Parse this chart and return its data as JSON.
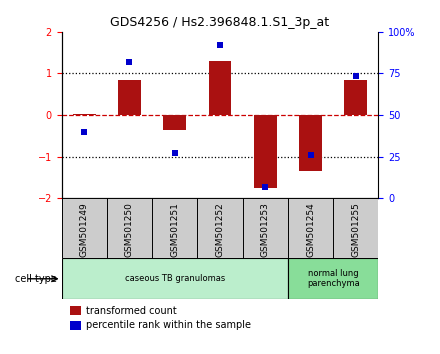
{
  "title": "GDS4256 / Hs2.396848.1.S1_3p_at",
  "samples": [
    "GSM501249",
    "GSM501250",
    "GSM501251",
    "GSM501252",
    "GSM501253",
    "GSM501254",
    "GSM501255"
  ],
  "red_bars": [
    0.02,
    0.85,
    -0.35,
    1.3,
    -1.75,
    -1.35,
    0.85
  ],
  "blue_dots": [
    -0.4,
    1.28,
    -0.92,
    1.68,
    -1.72,
    -0.96,
    0.94
  ],
  "ylim": [
    -2,
    2
  ],
  "yticks_left": [
    -2,
    -1,
    0,
    1,
    2
  ],
  "yticks_right_pct": [
    0,
    25,
    50,
    75,
    100
  ],
  "cell_groups": [
    {
      "label": "caseous TB granulomas",
      "indices": [
        0,
        1,
        2,
        3,
        4
      ],
      "color": "#bbeecc"
    },
    {
      "label": "normal lung\nparenchyma",
      "indices": [
        5,
        6
      ],
      "color": "#88dd99"
    }
  ],
  "bar_color": "#aa1111",
  "dot_color": "#0000cc",
  "hline0_color": "#cc0000",
  "dotline_color": "#000000",
  "bg_color": "#ffffff",
  "plot_bg": "#ffffff",
  "xlabel_bg": "#cccccc",
  "legend_red_label": "transformed count",
  "legend_blue_label": "percentile rank within the sample",
  "cell_type_label": "cell type",
  "bar_width": 0.5,
  "title_fontsize": 9,
  "tick_fontsize": 7,
  "label_fontsize": 6.5,
  "legend_fontsize": 7
}
